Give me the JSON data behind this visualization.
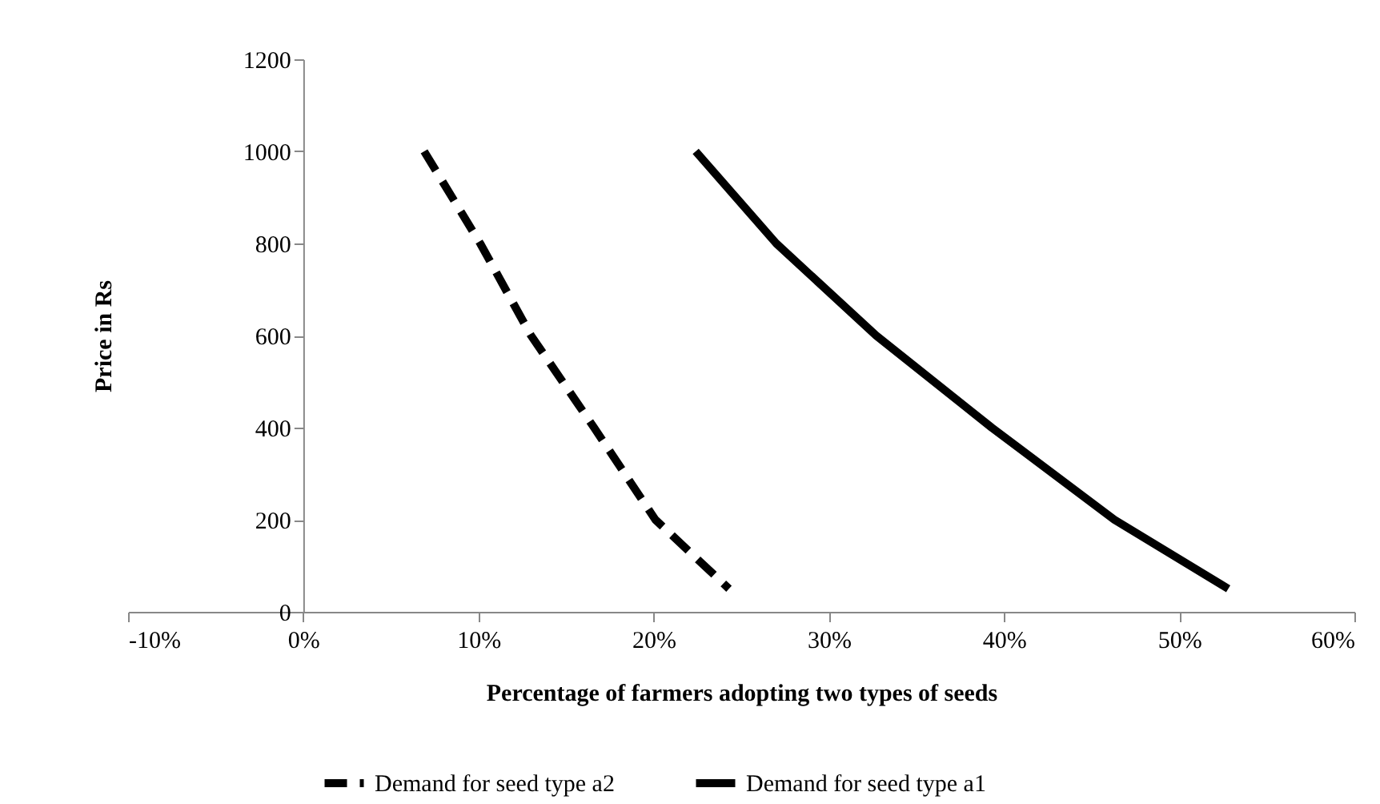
{
  "chart_data": {
    "type": "line",
    "xlabel": "Percentage of farmers adopting two types of seeds",
    "ylabel": "Price in Rs",
    "xlim": [
      -10,
      60
    ],
    "xticks": [
      {
        "value": -10,
        "label": "-10%"
      },
      {
        "value": 0,
        "label": "0%"
      },
      {
        "value": 10,
        "label": "10%"
      },
      {
        "value": 20,
        "label": "20%"
      },
      {
        "value": 30,
        "label": "30%"
      },
      {
        "value": 40,
        "label": "40%"
      },
      {
        "value": 50,
        "label": "50%"
      },
      {
        "value": 60,
        "label": "60%"
      }
    ],
    "ylim": [
      0,
      1200
    ],
    "yticks": [
      0,
      200,
      400,
      600,
      800,
      1000,
      1200
    ],
    "grid": false,
    "legend": "bottom",
    "marker": "none",
    "series": [
      {
        "name": "Demand for seed type a2",
        "color": "#000000",
        "line_style": "dashed",
        "x": [
          6.9,
          10.1,
          13.0,
          16.6,
          20.1,
          24.3
        ],
        "values": [
          1000,
          800,
          600,
          400,
          200,
          50
        ]
      },
      {
        "name": "Demand for seed type a1",
        "color": "#000000",
        "line_style": "solid",
        "x": [
          22.4,
          27.0,
          32.7,
          39.3,
          46.3,
          52.8
        ],
        "values": [
          1000,
          800,
          600,
          400,
          200,
          50
        ]
      }
    ]
  }
}
